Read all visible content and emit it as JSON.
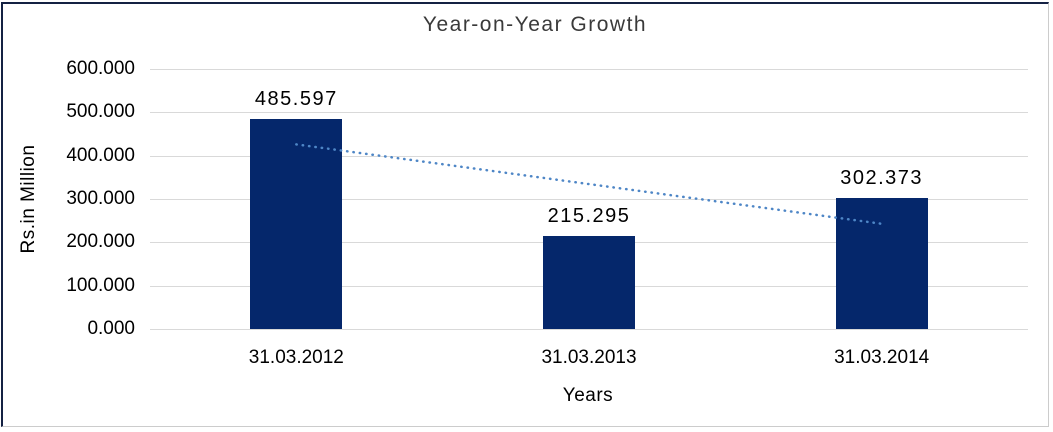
{
  "frame": {
    "dark_color": "#142143",
    "light_color": "#cccccc"
  },
  "chart_data": {
    "type": "bar",
    "title": "Year-on-Year Growth",
    "categories": [
      "31.03.2012",
      "31.03.2013",
      "31.03.2014"
    ],
    "values": [
      485.597,
      215.295,
      302.373
    ],
    "value_labels": [
      "485.597",
      "215.295",
      "302.373"
    ],
    "xlabel": "Years",
    "ylabel": "Rs.in Million",
    "ylim": [
      0,
      600
    ],
    "ytick_step": 100,
    "ytick_labels": [
      "0.000",
      "100.000",
      "200.000",
      "300.000",
      "400.000",
      "500.000",
      "600.000"
    ],
    "grid": true,
    "legend": "none",
    "bar_color": "#05276b",
    "gridline_color": "#d9d9d9",
    "label_color": "#000000",
    "title_color": "#3a3a3a",
    "trendline": {
      "type": "linear",
      "style": "dotted",
      "color": "#4e86c6"
    }
  }
}
